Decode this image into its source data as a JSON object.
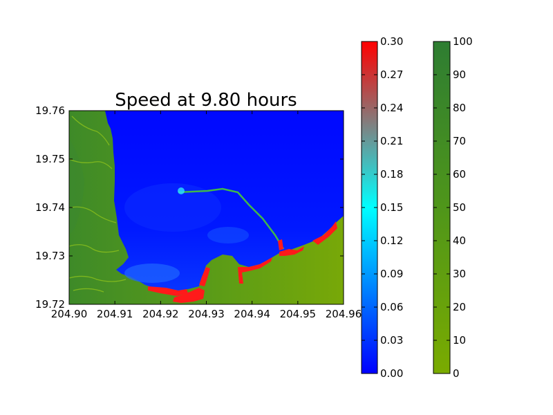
{
  "chart_data": {
    "type": "heatmap",
    "title": "Speed at 9.80 hours",
    "xlabel": "",
    "ylabel": "",
    "xlim": [
      204.9,
      204.96
    ],
    "ylim": [
      19.72,
      19.76
    ],
    "x_ticks": [
      "204.90",
      "204.91",
      "204.92",
      "204.93",
      "204.94",
      "204.95",
      "204.96"
    ],
    "y_ticks": [
      "19.72",
      "19.73",
      "19.74",
      "19.75",
      "19.76"
    ],
    "grid": false,
    "speed_colorbar": {
      "range": [
        0.0,
        0.3
      ],
      "ticks": [
        "0.00",
        "0.03",
        "0.06",
        "0.09",
        "0.12",
        "0.15",
        "0.18",
        "0.21",
        "0.24",
        "0.27",
        "0.30"
      ],
      "colors": [
        "#0000ff",
        "#00ffff",
        "#808080",
        "#ff0000"
      ]
    },
    "topography_colorbar": {
      "range": [
        0,
        100
      ],
      "ticks": [
        "0",
        "10",
        "20",
        "30",
        "40",
        "50",
        "60",
        "70",
        "80",
        "90",
        "100"
      ],
      "colors": [
        "#7aab00",
        "#2e7d32"
      ]
    },
    "water_color": "#0010ff",
    "high_speed_color": "#ff1a1a"
  }
}
